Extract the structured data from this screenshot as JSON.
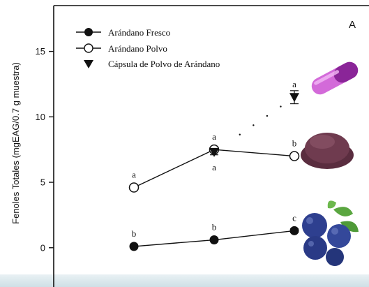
{
  "chart_data": {
    "type": "line",
    "panel_label": "A",
    "ylabel": "Fenoles Totales (mgEAG/0.7 g muestra)",
    "xlabel": "",
    "ylim": [
      -3,
      18.5
    ],
    "yticks": [
      0,
      5,
      10,
      15
    ],
    "x": [
      1,
      2,
      3
    ],
    "xlim": [
      0,
      4
    ],
    "series": [
      {
        "name": "Arándano Fresco",
        "marker": "filled-circle",
        "connected": true,
        "values": [
          0.1,
          0.6,
          1.3
        ],
        "errors": [
          0.1,
          0.1,
          0.15
        ],
        "labels": [
          "b",
          "b",
          "c"
        ],
        "label_position": "above"
      },
      {
        "name": "Arándano Polvo",
        "marker": "open-circle",
        "connected": true,
        "values": [
          4.6,
          7.5,
          7.0
        ],
        "errors": [
          0.15,
          0.15,
          0.1
        ],
        "labels": [
          "a",
          "a",
          "b"
        ],
        "label_position": "above"
      },
      {
        "name": "Cápsula de Polvo de Arándano",
        "marker": "filled-triangle-down",
        "connected": false,
        "values": [
          null,
          7.3,
          11.5
        ],
        "errors": [
          null,
          0.2,
          0.5
        ],
        "labels": [
          "",
          "a",
          "a"
        ],
        "label_position": [
          "",
          "below",
          "above"
        ]
      }
    ],
    "legend_position": "top-left",
    "grid": false
  },
  "images": {
    "capsule": {
      "color_top": "#c94fd4",
      "color_bottom": "#7d1f8c"
    },
    "powder": {
      "color": "#6f3b4f"
    },
    "berries": {
      "color": "#2e3f8f",
      "leaf": "#5aa640"
    }
  }
}
